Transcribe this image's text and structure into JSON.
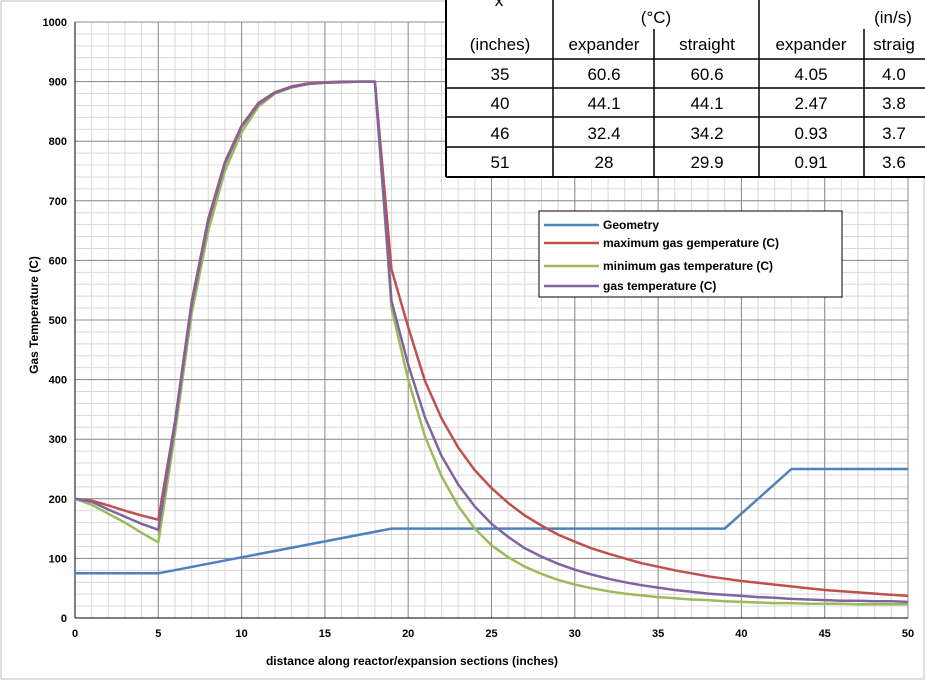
{
  "chart_data": {
    "type": "line",
    "xlabel": "distance along reactor/expansion sections (inches)",
    "ylabel": "Gas Temperature (C)",
    "xlim": [
      0,
      50
    ],
    "ylim": [
      0,
      1000
    ],
    "x_ticks": [
      0,
      5,
      10,
      15,
      20,
      25,
      30,
      35,
      40,
      45,
      50
    ],
    "y_ticks": [
      0,
      100,
      200,
      300,
      400,
      500,
      600,
      700,
      800,
      900,
      1000
    ],
    "grid": true,
    "legend_position": "center-right",
    "series": [
      {
        "name": "Geometry",
        "color": "#4f81bd",
        "points": [
          [
            0,
            75
          ],
          [
            5,
            75
          ],
          [
            19,
            150
          ],
          [
            39,
            150
          ],
          [
            43,
            250
          ],
          [
            50,
            250
          ]
        ]
      },
      {
        "name": "maximum gas gemperature (C)",
        "color": "#c0504d",
        "points": [
          [
            0,
            200
          ],
          [
            1,
            197
          ],
          [
            2,
            189
          ],
          [
            3,
            180
          ],
          [
            4,
            172
          ],
          [
            5,
            165
          ],
          [
            6,
            330
          ],
          [
            7,
            530
          ],
          [
            8,
            670
          ],
          [
            9,
            765
          ],
          [
            10,
            826
          ],
          [
            11,
            864
          ],
          [
            12,
            882
          ],
          [
            13,
            892
          ],
          [
            14,
            897
          ],
          [
            15,
            899
          ],
          [
            16,
            900
          ],
          [
            17,
            900
          ],
          [
            18,
            900
          ],
          [
            19,
            585
          ],
          [
            20,
            488
          ],
          [
            21,
            398
          ],
          [
            22,
            335
          ],
          [
            23,
            286
          ],
          [
            24,
            248
          ],
          [
            25,
            218
          ],
          [
            26,
            193
          ],
          [
            27,
            172
          ],
          [
            28,
            155
          ],
          [
            29,
            140
          ],
          [
            30,
            128
          ],
          [
            31,
            117
          ],
          [
            32,
            108
          ],
          [
            33,
            100
          ],
          [
            34,
            92
          ],
          [
            35,
            86
          ],
          [
            36,
            80
          ],
          [
            37,
            75
          ],
          [
            38,
            70
          ],
          [
            39,
            66
          ],
          [
            40,
            62
          ],
          [
            41,
            59
          ],
          [
            42,
            56
          ],
          [
            43,
            53
          ],
          [
            44,
            50
          ],
          [
            45,
            47
          ],
          [
            46,
            45
          ],
          [
            47,
            43
          ],
          [
            48,
            41
          ],
          [
            49,
            39
          ],
          [
            50,
            37
          ]
        ]
      },
      {
        "name": "minimum gas temperature (C)",
        "color": "#9bbb59",
        "points": [
          [
            0,
            200
          ],
          [
            1,
            190
          ],
          [
            2,
            175
          ],
          [
            3,
            160
          ],
          [
            4,
            143
          ],
          [
            5,
            127
          ],
          [
            6,
            310
          ],
          [
            7,
            510
          ],
          [
            8,
            650
          ],
          [
            9,
            750
          ],
          [
            10,
            815
          ],
          [
            11,
            858
          ],
          [
            12,
            880
          ],
          [
            13,
            890
          ],
          [
            14,
            896
          ],
          [
            15,
            898
          ],
          [
            16,
            899
          ],
          [
            17,
            900
          ],
          [
            18,
            900
          ],
          [
            19,
            520
          ],
          [
            20,
            400
          ],
          [
            21,
            305
          ],
          [
            22,
            238
          ],
          [
            23,
            188
          ],
          [
            24,
            150
          ],
          [
            25,
            122
          ],
          [
            26,
            102
          ],
          [
            27,
            86
          ],
          [
            28,
            74
          ],
          [
            29,
            64
          ],
          [
            30,
            56
          ],
          [
            31,
            50
          ],
          [
            32,
            45
          ],
          [
            33,
            41
          ],
          [
            34,
            38
          ],
          [
            35,
            35
          ],
          [
            36,
            33
          ],
          [
            37,
            31
          ],
          [
            38,
            30
          ],
          [
            39,
            28
          ],
          [
            40,
            27
          ],
          [
            41,
            26
          ],
          [
            42,
            25
          ],
          [
            43,
            25
          ],
          [
            44,
            24
          ],
          [
            45,
            24
          ],
          [
            46,
            24
          ],
          [
            47,
            23
          ],
          [
            48,
            23
          ],
          [
            49,
            23
          ],
          [
            50,
            23
          ]
        ]
      },
      {
        "name": "gas temperature (C)",
        "color": "#8064a2",
        "points": [
          [
            0,
            200
          ],
          [
            1,
            195
          ],
          [
            2,
            182
          ],
          [
            3,
            170
          ],
          [
            4,
            158
          ],
          [
            5,
            148
          ],
          [
            6,
            325
          ],
          [
            7,
            525
          ],
          [
            8,
            665
          ],
          [
            9,
            762
          ],
          [
            10,
            824
          ],
          [
            11,
            862
          ],
          [
            12,
            881
          ],
          [
            13,
            891
          ],
          [
            14,
            896
          ],
          [
            15,
            898
          ],
          [
            16,
            899
          ],
          [
            17,
            900
          ],
          [
            18,
            900
          ],
          [
            19,
            532
          ],
          [
            20,
            425
          ],
          [
            21,
            337
          ],
          [
            22,
            272
          ],
          [
            23,
            224
          ],
          [
            24,
            187
          ],
          [
            25,
            158
          ],
          [
            26,
            136
          ],
          [
            27,
            117
          ],
          [
            28,
            103
          ],
          [
            29,
            91
          ],
          [
            30,
            81
          ],
          [
            31,
            73
          ],
          [
            32,
            66
          ],
          [
            33,
            60
          ],
          [
            34,
            55
          ],
          [
            35,
            51
          ],
          [
            36,
            47
          ],
          [
            37,
            44
          ],
          [
            38,
            41
          ],
          [
            39,
            39
          ],
          [
            40,
            37
          ],
          [
            41,
            35
          ],
          [
            42,
            34
          ],
          [
            43,
            32
          ],
          [
            44,
            31
          ],
          [
            45,
            30
          ],
          [
            46,
            29
          ],
          [
            47,
            29
          ],
          [
            48,
            28
          ],
          [
            49,
            28
          ],
          [
            50,
            27
          ]
        ]
      }
    ]
  },
  "table": {
    "header_row1": [
      "x",
      "(°C)",
      "(in/s)"
    ],
    "header_row2": [
      "(inches)",
      "expander",
      "straight",
      "expander",
      "straig"
    ],
    "rows": [
      [
        "35",
        "60.6",
        "60.6",
        "4.05",
        "4.0"
      ],
      [
        "40",
        "44.1",
        "44.1",
        "2.47",
        "3.8"
      ],
      [
        "46",
        "32.4",
        "34.2",
        "0.93",
        "3.7"
      ],
      [
        "51",
        "28",
        "29.9",
        "0.91",
        "3.6"
      ]
    ]
  }
}
